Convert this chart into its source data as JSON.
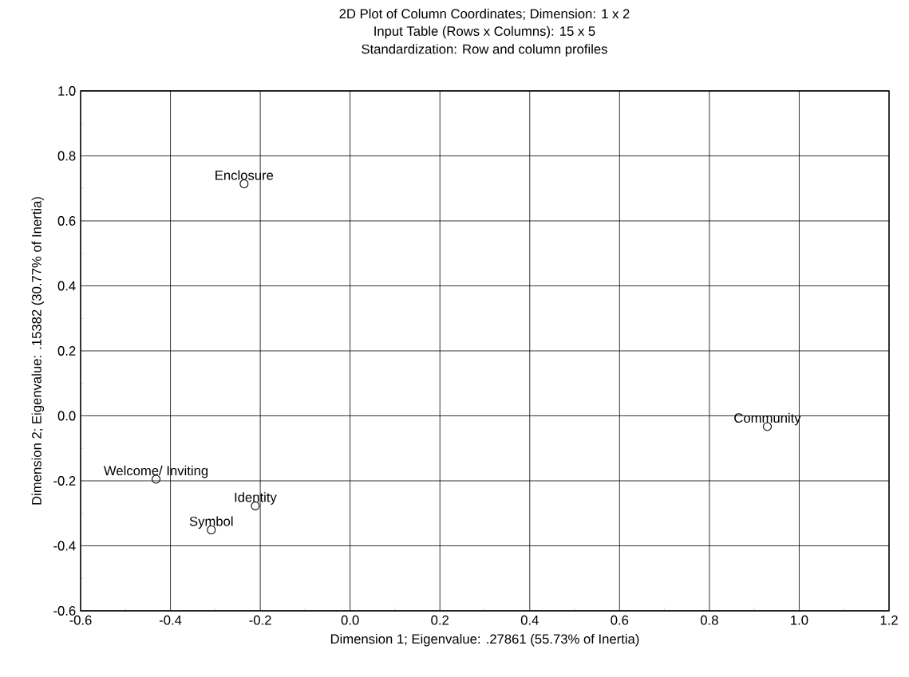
{
  "chart_data": {
    "type": "scatter",
    "title": "2D Plot of Column Coordinates; Dimension:  1 x  2",
    "subtitle": "Input Table (Rows x Columns): 15 x 5",
    "annotations": [
      "Standardization: Row and column profiles",
      {
        "text": "Community",
        "x": 0.929,
        "y": -0.033
      },
      {
        "text": "Enclosure",
        "x": -0.236,
        "y": 0.714
      },
      {
        "text": "Identity",
        "x": -0.211,
        "y": -0.277
      },
      {
        "text": "Symbol",
        "x": -0.309,
        "y": -0.351
      },
      {
        "text": "Welcome/ Inviting",
        "x": -0.432,
        "y": -0.195
      }
    ],
    "xlabel": "Dimension 1; Eigenvalue: .27861 (55.73% of Inertia)",
    "ylabel": "Dimension 2; Eigenvalue: .15382 (30.77% of Inertia)",
    "x": [
      0.929,
      -0.236,
      -0.211,
      -0.309,
      -0.432
    ],
    "series": [
      {
        "color": "#000000",
        "values": [
          -0.033,
          0.714,
          -0.277,
          -0.351,
          -0.195
        ]
      }
    ],
    "xlim": [
      -0.6,
      1.2
    ],
    "ylim": [
      -0.6,
      1.0
    ],
    "xticks": [
      {
        "value": -0.6,
        "label": "-0.6"
      },
      {
        "value": -0.4,
        "label": "-0.4"
      },
      {
        "value": -0.2,
        "label": "-0.2"
      },
      {
        "value": 0,
        "label": "0.0"
      },
      {
        "value": 0.2,
        "label": "0.2"
      },
      {
        "value": 0.4,
        "label": "0.4"
      },
      {
        "value": 0.6,
        "label": "0.6"
      },
      {
        "value": 0.8,
        "label": "0.8"
      },
      {
        "value": 1.0,
        "label": "1.0"
      },
      {
        "value": 1.2,
        "label": "1.2"
      }
    ],
    "yticks": [
      {
        "value": -0.6,
        "label": "-0.6"
      },
      {
        "value": -0.4,
        "label": "-0.4"
      },
      {
        "value": -0.2,
        "label": "-0.2"
      },
      {
        "value": 0,
        "label": "0.0"
      },
      {
        "value": 0.2,
        "label": "0.2"
      },
      {
        "value": 0.4,
        "label": "0.4"
      },
      {
        "value": 0.6,
        "label": "0.6"
      },
      {
        "value": 0.8,
        "label": "0.8"
      },
      {
        "value": 1.0,
        "label": "1.0"
      }
    ],
    "grid": true,
    "marker": "circle"
  }
}
